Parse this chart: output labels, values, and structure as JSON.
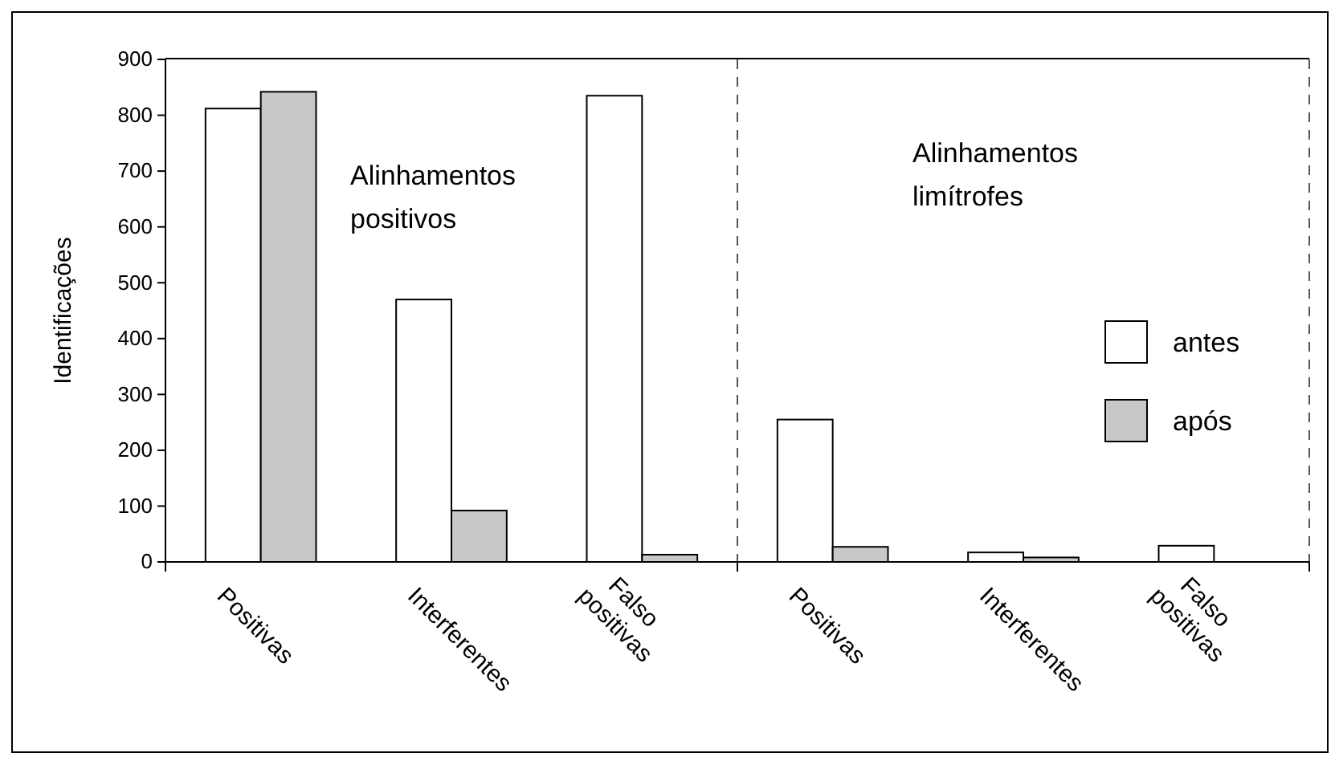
{
  "chart_data": {
    "type": "bar",
    "ylabel": "Identificações",
    "categories": [
      "Positivas",
      "Interferentes",
      "Falso positivas",
      "Positivas",
      "Interferentes",
      "Falso positivas"
    ],
    "series": [
      {
        "name": "antes",
        "color": "#ffffff",
        "values": [
          812,
          470,
          835,
          255,
          17,
          29
        ]
      },
      {
        "name": "após",
        "color": "#c8c8c8",
        "values": [
          842,
          92,
          13,
          27,
          8,
          0
        ]
      }
    ],
    "ylim": [
      0,
      900
    ],
    "yticks": [
      0,
      100,
      200,
      300,
      400,
      500,
      600,
      700,
      800,
      900
    ],
    "annotations": [
      "Alinhamentos positivos",
      "Alinhamentos limítrofes"
    ],
    "grid": false,
    "legend": "right"
  }
}
